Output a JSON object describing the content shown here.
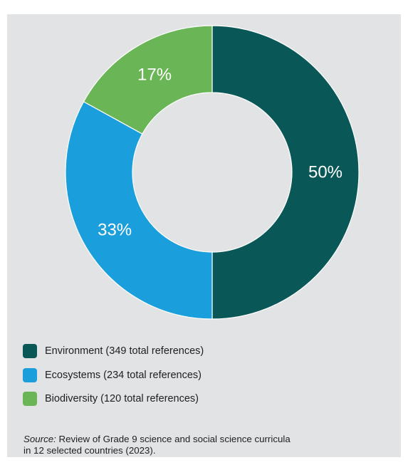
{
  "colors": {
    "panel_background": "#e1e3e4",
    "environment": "#0a5757",
    "ecosystems": "#1a9edc",
    "biodiversity": "#6ab556"
  },
  "chart_data": {
    "type": "pie",
    "donut": true,
    "slices": [
      {
        "label": "Environment (349 total references)",
        "value": 50,
        "value_label": "50%",
        "color": "#0a5757"
      },
      {
        "label": "Ecosystems (234 total references)",
        "value": 33,
        "value_label": "33%",
        "color": "#1a9edc"
      },
      {
        "label": "Biodiversity (120 total references)",
        "value": 17,
        "value_label": "17%",
        "color": "#6ab556"
      }
    ],
    "legend_position": "bottom-left"
  },
  "source": {
    "prefix": "Source:",
    "text": " Review of Grade 9 science and social science curricula",
    "text_line2": "in 12 selected countries (2023)."
  }
}
